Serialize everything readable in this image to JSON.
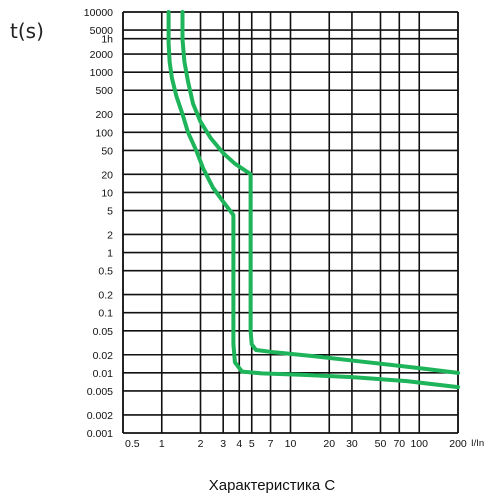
{
  "chart_data": {
    "type": "line",
    "title": "Характеристика C",
    "ylabel": "t(s)",
    "xlabel": "I/In",
    "x_scale": "log",
    "y_scale": "log",
    "xlim": [
      0.5,
      200
    ],
    "ylim": [
      0.001,
      10000
    ],
    "x_ticks": [
      {
        "value": 0.5,
        "label": "0.5"
      },
      {
        "value": 1,
        "label": "1"
      },
      {
        "value": 2,
        "label": "2"
      },
      {
        "value": 3,
        "label": "3"
      },
      {
        "value": 4,
        "label": "4"
      },
      {
        "value": 5,
        "label": "5"
      },
      {
        "value": 7,
        "label": "7"
      },
      {
        "value": 10,
        "label": "10"
      },
      {
        "value": 20,
        "label": "20"
      },
      {
        "value": 30,
        "label": "30"
      },
      {
        "value": 50,
        "label": "50"
      },
      {
        "value": 70,
        "label": "70"
      },
      {
        "value": 100,
        "label": "100"
      },
      {
        "value": 200,
        "label": "200"
      }
    ],
    "y_ticks": [
      {
        "value": 10000,
        "label": "10000"
      },
      {
        "value": 5000,
        "label": "5000"
      },
      {
        "value": 3600,
        "label": "1h"
      },
      {
        "value": 2000,
        "label": "2000"
      },
      {
        "value": 1000,
        "label": "1000"
      },
      {
        "value": 500,
        "label": "500"
      },
      {
        "value": 200,
        "label": "200"
      },
      {
        "value": 100,
        "label": "100"
      },
      {
        "value": 50,
        "label": "50"
      },
      {
        "value": 20,
        "label": "20"
      },
      {
        "value": 10,
        "label": "10"
      },
      {
        "value": 5,
        "label": "5"
      },
      {
        "value": 2,
        "label": "2"
      },
      {
        "value": 1,
        "label": "1"
      },
      {
        "value": 0.5,
        "label": "0.5"
      },
      {
        "value": 0.2,
        "label": "0.2"
      },
      {
        "value": 0.1,
        "label": "0.1"
      },
      {
        "value": 0.05,
        "label": "0.05"
      },
      {
        "value": 0.02,
        "label": "0.02"
      },
      {
        "value": 0.01,
        "label": "0.01"
      },
      {
        "value": 0.005,
        "label": "0.005"
      },
      {
        "value": 0.002,
        "label": "0.002"
      },
      {
        "value": 0.001,
        "label": "0.001"
      }
    ],
    "grid": true,
    "color": "#1db45a",
    "series": [
      {
        "x": [
          1.13,
          1.13,
          1.15,
          1.2,
          1.3,
          1.45,
          1.6,
          1.85,
          2.1,
          2.5,
          3.0,
          3.6,
          3.6,
          3.6,
          3.7,
          4.2,
          6.0,
          12,
          30,
          80,
          200
        ],
        "y": [
          10000,
          3000,
          1500,
          800,
          400,
          200,
          100,
          50,
          25,
          12,
          7,
          4.2,
          0.3,
          0.03,
          0.015,
          0.0105,
          0.0098,
          0.0093,
          0.0085,
          0.0073,
          0.0058
        ]
      },
      {
        "x": [
          1.45,
          1.45,
          1.5,
          1.6,
          1.75,
          2.0,
          2.4,
          3.0,
          3.7,
          4.6,
          4.9,
          4.9,
          4.9,
          5.0,
          5.4,
          7.5,
          15,
          40,
          100,
          200
        ],
        "y": [
          10000,
          3500,
          1500,
          700,
          300,
          150,
          80,
          45,
          30,
          22,
          20,
          0.8,
          0.05,
          0.03,
          0.024,
          0.022,
          0.019,
          0.015,
          0.012,
          0.01
        ]
      }
    ]
  }
}
